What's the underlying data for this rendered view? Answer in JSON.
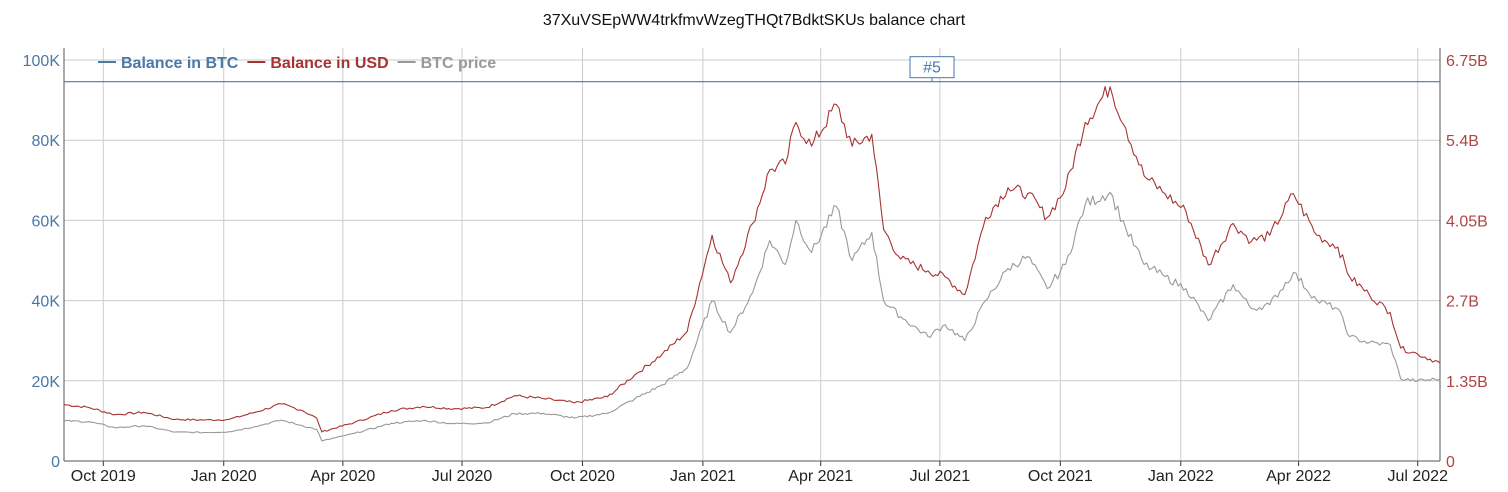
{
  "title": "37XuVSEpWW4trkfmvWzegTHQt7BdktSKUs balance chart",
  "chart_data": {
    "type": "line",
    "title": "37XuVSEpWW4trkfmvWzegTHQt7BdktSKUs balance chart",
    "legend_position": "top-left",
    "grid": true,
    "x_ticks": [
      "Oct 2019",
      "Jan 2020",
      "Apr 2020",
      "Jul 2020",
      "Oct 2020",
      "Jan 2021",
      "Apr 2021",
      "Jul 2021",
      "Oct 2021",
      "Jan 2022",
      "Apr 2022",
      "Jul 2022"
    ],
    "x_range": [
      "2019-09-01",
      "2022-07-18"
    ],
    "y_left": {
      "ticks": [
        "0",
        "20K",
        "40K",
        "60K",
        "80K",
        "100K"
      ],
      "values": [
        0,
        20000,
        40000,
        60000,
        80000,
        100000
      ],
      "range": [
        0,
        103000
      ],
      "color": "#4a78a8"
    },
    "y_right": {
      "ticks": [
        "0",
        "1.35B",
        "2.7B",
        "4.05B",
        "5.4B",
        "6.75B"
      ],
      "values": [
        0,
        1350000000,
        2700000000,
        4050000000,
        5400000000,
        6750000000
      ],
      "range": [
        0,
        6952500000
      ],
      "color": "#b04444"
    },
    "annotation": {
      "label": "#5",
      "date": "2021-06-25"
    },
    "series": [
      {
        "name": "Balance in BTC",
        "axis": "left",
        "color": "#4a78a8",
        "x": [
          "2019-09-01",
          "2022-07-18"
        ],
        "y": [
          94600,
          94600
        ]
      },
      {
        "name": "Balance in USD",
        "axis": "right",
        "color": "#a83232",
        "x": [
          "2019-09-01",
          "2019-09-20",
          "2019-10-10",
          "2019-11-01",
          "2019-11-25",
          "2019-12-18",
          "2020-01-05",
          "2020-01-25",
          "2020-02-14",
          "2020-03-01",
          "2020-03-12",
          "2020-03-16",
          "2020-04-10",
          "2020-05-08",
          "2020-06-01",
          "2020-06-25",
          "2020-07-20",
          "2020-08-10",
          "2020-09-01",
          "2020-09-25",
          "2020-10-20",
          "2020-11-10",
          "2020-12-01",
          "2020-12-20",
          "2021-01-08",
          "2021-01-22",
          "2021-02-08",
          "2021-02-21",
          "2021-03-05",
          "2021-03-13",
          "2021-03-25",
          "2021-04-13",
          "2021-04-25",
          "2021-05-10",
          "2021-05-19",
          "2021-06-01",
          "2021-06-22",
          "2021-07-05",
          "2021-07-20",
          "2021-08-05",
          "2021-08-22",
          "2021-09-06",
          "2021-09-21",
          "2021-10-05",
          "2021-10-20",
          "2021-11-08",
          "2021-11-20",
          "2021-12-04",
          "2021-12-20",
          "2022-01-05",
          "2022-01-22",
          "2022-02-10",
          "2022-02-24",
          "2022-03-10",
          "2022-03-28",
          "2022-04-15",
          "2022-05-01",
          "2022-05-10",
          "2022-05-25",
          "2022-06-10",
          "2022-06-18",
          "2022-07-01",
          "2022-07-18"
        ],
        "y": [
          950000000,
          900000000,
          780000000,
          820000000,
          700000000,
          690000000,
          700000000,
          820000000,
          960000000,
          850000000,
          720000000,
          490000000,
          650000000,
          850000000,
          920000000,
          880000000,
          900000000,
          1100000000,
          1050000000,
          980000000,
          1080000000,
          1450000000,
          1800000000,
          2180000000,
          3800000000,
          3000000000,
          4000000000,
          4900000000,
          5000000000,
          5700000000,
          5300000000,
          6000000000,
          5300000000,
          5500000000,
          3900000000,
          3400000000,
          3200000000,
          3100000000,
          2800000000,
          4100000000,
          4600000000,
          4500000000,
          4100000000,
          4600000000,
          5700000000,
          6300000000,
          5600000000,
          4800000000,
          4500000000,
          4200000000,
          3300000000,
          4000000000,
          3700000000,
          3800000000,
          4500000000,
          3800000000,
          3600000000,
          3100000000,
          2800000000,
          2500000000,
          1900000000,
          1800000000,
          1650000000
        ]
      },
      {
        "name": "BTC price",
        "axis": "left",
        "color": "#999999",
        "x": [
          "2019-09-01",
          "2019-09-20",
          "2019-10-10",
          "2019-11-01",
          "2019-11-25",
          "2019-12-18",
          "2020-01-05",
          "2020-01-25",
          "2020-02-14",
          "2020-03-01",
          "2020-03-12",
          "2020-03-16",
          "2020-04-10",
          "2020-05-08",
          "2020-06-01",
          "2020-06-25",
          "2020-07-20",
          "2020-08-10",
          "2020-09-01",
          "2020-09-25",
          "2020-10-20",
          "2020-11-10",
          "2020-12-01",
          "2020-12-20",
          "2021-01-08",
          "2021-01-22",
          "2021-02-08",
          "2021-02-21",
          "2021-03-05",
          "2021-03-13",
          "2021-03-25",
          "2021-04-13",
          "2021-04-25",
          "2021-05-10",
          "2021-05-19",
          "2021-06-01",
          "2021-06-22",
          "2021-07-05",
          "2021-07-20",
          "2021-08-05",
          "2021-08-22",
          "2021-09-06",
          "2021-09-21",
          "2021-10-05",
          "2021-10-20",
          "2021-11-08",
          "2021-11-20",
          "2021-12-04",
          "2021-12-20",
          "2022-01-05",
          "2022-01-22",
          "2022-02-10",
          "2022-02-24",
          "2022-03-10",
          "2022-03-28",
          "2022-04-15",
          "2022-05-01",
          "2022-05-10",
          "2022-05-25",
          "2022-06-10",
          "2022-06-18",
          "2022-07-01",
          "2022-07-18"
        ],
        "y": [
          10000,
          9800,
          8300,
          8800,
          7200,
          7100,
          7300,
          8600,
          10200,
          8800,
          7900,
          5000,
          6900,
          9400,
          10100,
          9300,
          9500,
          11800,
          11900,
          10700,
          11900,
          15500,
          19000,
          23200,
          40000,
          32000,
          42000,
          55000,
          49000,
          60000,
          52000,
          63500,
          50000,
          57000,
          40000,
          36000,
          31000,
          34000,
          30000,
          40000,
          48000,
          51000,
          43000,
          49000,
          64000,
          67000,
          58000,
          49000,
          46000,
          43000,
          35000,
          44000,
          38000,
          39000,
          47000,
          40000,
          38000,
          31000,
          29500,
          29000,
          20500,
          20000,
          20500
        ]
      }
    ]
  }
}
